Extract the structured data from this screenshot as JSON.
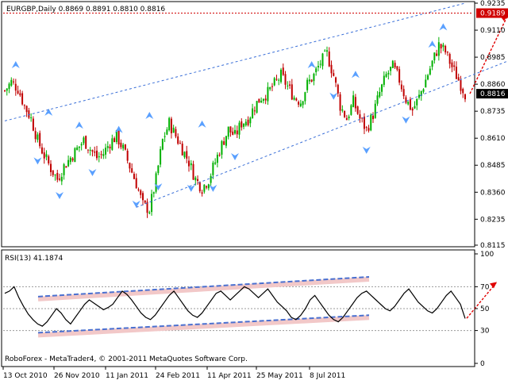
{
  "main_chart": {
    "symbol_line": "EURGBP,Daily  0.8869 0.8891 0.8810 0.8816",
    "y_ticks": [
      "0.9235",
      "0.9110",
      "0.8985",
      "0.8860",
      "0.8735",
      "0.8610",
      "0.8485",
      "0.8360",
      "0.8235",
      "0.8115"
    ],
    "resistance_label": "0.9189",
    "price_label": "0.8816"
  },
  "rsi_panel": {
    "title": "RSI(13) 41.1874",
    "y_ticks": [
      "100",
      "70",
      "50",
      "30",
      "0"
    ]
  },
  "footer": {
    "copyright": "RoboForex - MetaTrader4, © 2001-2011 MetaQuotes Software Corp."
  },
  "x_axis": {
    "labels": [
      "13 Oct 2010",
      "26 Nov 2010",
      "11 Jan 2011",
      "24 Feb 2011",
      "11 Apr 2011",
      "25 May 2011",
      "8 Jul 2011"
    ]
  },
  "colors": {
    "bull": "#00b000",
    "bear": "#c00000",
    "fractal": "#5aa0ff",
    "channel": "#3a6fd8",
    "arrow": "#e00000",
    "rsi_line": "#000000",
    "rsi_channel": "#4a70d0",
    "rsi_band": "#f2c8c8",
    "resistance": "#d00000"
  },
  "chart_data": [
    {
      "type": "candlestick",
      "title": "EURGBP,Daily  0.8869 0.8891 0.8810 0.8816",
      "ylim": [
        0.8115,
        0.9235
      ],
      "x_labels": [
        "13 Oct 2010",
        "26 Nov 2010",
        "11 Jan 2011",
        "24 Feb 2011",
        "11 Apr 2011",
        "25 May 2011",
        "8 Jul 2011"
      ],
      "close_path": [
        [
          0,
          0.883
        ],
        [
          3,
          0.887
        ],
        [
          6,
          0.884
        ],
        [
          9,
          0.876
        ],
        [
          12,
          0.87
        ],
        [
          15,
          0.86
        ],
        [
          18,
          0.853
        ],
        [
          21,
          0.847
        ],
        [
          24,
          0.842
        ],
        [
          27,
          0.848
        ],
        [
          30,
          0.852
        ],
        [
          33,
          0.856
        ],
        [
          36,
          0.86
        ],
        [
          39,
          0.856
        ],
        [
          42,
          0.852
        ],
        [
          45,
          0.854
        ],
        [
          48,
          0.859
        ],
        [
          51,
          0.862
        ],
        [
          54,
          0.856
        ],
        [
          57,
          0.848
        ],
        [
          60,
          0.84
        ],
        [
          63,
          0.83
        ],
        [
          66,
          0.828
        ],
        [
          69,
          0.842
        ],
        [
          72,
          0.86
        ],
        [
          75,
          0.868
        ],
        [
          78,
          0.862
        ],
        [
          81,
          0.856
        ],
        [
          84,
          0.85
        ],
        [
          87,
          0.842
        ],
        [
          90,
          0.838
        ],
        [
          93,
          0.842
        ],
        [
          96,
          0.85
        ],
        [
          99,
          0.858
        ],
        [
          102,
          0.865
        ],
        [
          105,
          0.862
        ],
        [
          108,
          0.868
        ],
        [
          111,
          0.87
        ],
        [
          114,
          0.876
        ],
        [
          117,
          0.88
        ],
        [
          120,
          0.882
        ],
        [
          123,
          0.886
        ],
        [
          126,
          0.89
        ],
        [
          129,
          0.885
        ],
        [
          132,
          0.88
        ],
        [
          135,
          0.878
        ],
        [
          138,
          0.886
        ],
        [
          141,
          0.89
        ],
        [
          144,
          0.896
        ],
        [
          147,
          0.9
        ],
        [
          150,
          0.89
        ],
        [
          153,
          0.876
        ],
        [
          156,
          0.87
        ],
        [
          159,
          0.878
        ],
        [
          162,
          0.87
        ],
        [
          165,
          0.865
        ],
        [
          168,
          0.872
        ],
        [
          171,
          0.882
        ],
        [
          174,
          0.89
        ],
        [
          177,
          0.894
        ],
        [
          180,
          0.888
        ],
        [
          183,
          0.879
        ],
        [
          186,
          0.874
        ],
        [
          189,
          0.88
        ],
        [
          192,
          0.888
        ],
        [
          195,
          0.896
        ],
        [
          198,
          0.904
        ],
        [
          201,
          0.901
        ],
        [
          204,
          0.894
        ],
        [
          207,
          0.888
        ],
        [
          210,
          0.8816
        ]
      ],
      "fractals_up": [
        0.8945,
        0.8725,
        0.8665,
        0.8645,
        0.871,
        0.867,
        0.8945,
        0.89,
        0.904,
        0.912
      ],
      "channel_top": [
        [
          0.869
        ],
        [
          0.9235
        ]
      ],
      "channel_bottom": [
        [
          0.829
        ],
        [
          0.9005
        ]
      ],
      "resistance": 0.9189,
      "last_price": 0.8816
    },
    {
      "type": "line",
      "title": "RSI(13) 41.1874",
      "ylim": [
        0,
        100
      ],
      "hlines": [
        70,
        50,
        30
      ],
      "last_value": 41.1874,
      "values": [
        64,
        66,
        70,
        60,
        52,
        45,
        40,
        36,
        34,
        38,
        44,
        50,
        46,
        40,
        36,
        42,
        48,
        54,
        58,
        55,
        52,
        49,
        51,
        54,
        60,
        66,
        63,
        58,
        52,
        46,
        42,
        40,
        44,
        50,
        56,
        62,
        66,
        60,
        54,
        48,
        44,
        42,
        46,
        52,
        58,
        64,
        66,
        62,
        58,
        62,
        66,
        70,
        68,
        64,
        60,
        64,
        68,
        62,
        56,
        52,
        48,
        42,
        40,
        44,
        50,
        58,
        62,
        56,
        50,
        44,
        40,
        38,
        42,
        48,
        54,
        60,
        64,
        66,
        62,
        58,
        54,
        50,
        48,
        52,
        58,
        64,
        68,
        62,
        56,
        52,
        48,
        46,
        50,
        56,
        62,
        66,
        60,
        54,
        41
      ],
      "channel_top": [
        [
          61
        ],
        [
          79
        ]
      ],
      "channel_bottom": [
        [
          28
        ],
        [
          44
        ]
      ]
    }
  ]
}
